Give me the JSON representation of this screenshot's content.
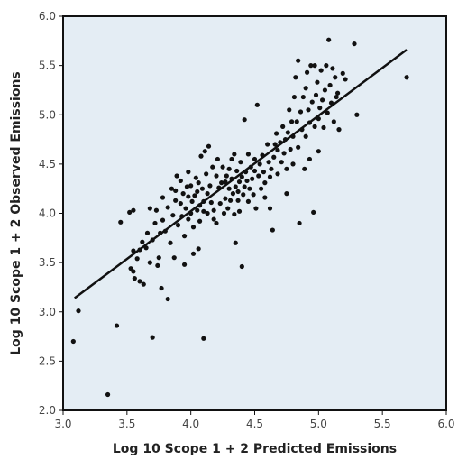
{
  "chart_data": {
    "type": "scatter",
    "title": "",
    "xlabel": "Log 10 Scope 1 + 2 Predicted Emissions",
    "ylabel": "Log 10 Scope 1 + 2 Observed Emissions",
    "xlim": [
      3.0,
      6.0
    ],
    "ylim": [
      2.0,
      6.0
    ],
    "x_ticks": [
      "3.0",
      "3.5",
      "4.0",
      "4.5",
      "5.0",
      "5.5",
      "6.0"
    ],
    "y_ticks": [
      "2.0",
      "2.5",
      "3.0",
      "3.5",
      "4.0",
      "4.5",
      "5.0",
      "5.5",
      "6.0"
    ],
    "grid": false,
    "colors": {
      "plot_background": "#e4edf4",
      "points": "#111111",
      "fit_line": "#111111",
      "frame": "#111111"
    },
    "fit_line": {
      "x": [
        3.09,
        5.69
      ],
      "y": [
        3.14,
        5.66
      ]
    },
    "points": [
      [
        3.08,
        2.7
      ],
      [
        3.12,
        3.01
      ],
      [
        3.35,
        2.16
      ],
      [
        3.42,
        2.86
      ],
      [
        3.7,
        2.74
      ],
      [
        4.1,
        2.73
      ],
      [
        3.45,
        3.91
      ],
      [
        3.52,
        4.01
      ],
      [
        3.55,
        4.03
      ],
      [
        3.53,
        3.44
      ],
      [
        3.55,
        3.41
      ],
      [
        3.55,
        3.62
      ],
      [
        3.56,
        3.34
      ],
      [
        3.58,
        3.54
      ],
      [
        3.6,
        3.63
      ],
      [
        3.6,
        3.31
      ],
      [
        3.62,
        3.71
      ],
      [
        3.63,
        3.28
      ],
      [
        3.65,
        3.65
      ],
      [
        3.66,
        3.8
      ],
      [
        3.68,
        3.5
      ],
      [
        3.68,
        4.05
      ],
      [
        3.7,
        3.73
      ],
      [
        3.72,
        3.9
      ],
      [
        3.73,
        4.03
      ],
      [
        3.74,
        3.47
      ],
      [
        3.75,
        3.55
      ],
      [
        3.76,
        3.8
      ],
      [
        3.77,
        3.24
      ],
      [
        3.78,
        4.16
      ],
      [
        3.78,
        3.93
      ],
      [
        3.8,
        3.82
      ],
      [
        3.82,
        4.06
      ],
      [
        3.82,
        3.13
      ],
      [
        3.84,
        3.7
      ],
      [
        3.85,
        4.25
      ],
      [
        3.86,
        3.98
      ],
      [
        3.87,
        3.55
      ],
      [
        3.88,
        4.13
      ],
      [
        3.88,
        4.23
      ],
      [
        3.89,
        4.38
      ],
      [
        3.9,
        3.88
      ],
      [
        3.92,
        4.1
      ],
      [
        3.92,
        4.33
      ],
      [
        3.93,
        3.97
      ],
      [
        3.94,
        4.2
      ],
      [
        3.95,
        3.77
      ],
      [
        3.95,
        3.48
      ],
      [
        3.96,
        4.05
      ],
      [
        3.97,
        4.27
      ],
      [
        3.98,
        3.94
      ],
      [
        3.98,
        4.17
      ],
      [
        3.98,
        4.42
      ],
      [
        4.0,
        4.0
      ],
      [
        4.0,
        4.28
      ],
      [
        4.01,
        4.12
      ],
      [
        4.02,
        3.86
      ],
      [
        4.02,
        3.59
      ],
      [
        4.03,
        4.18
      ],
      [
        4.04,
        4.36
      ],
      [
        4.05,
        4.03
      ],
      [
        4.05,
        4.22
      ],
      [
        4.06,
        4.31
      ],
      [
        4.06,
        3.64
      ],
      [
        4.07,
        4.08
      ],
      [
        4.07,
        3.92
      ],
      [
        4.08,
        4.58
      ],
      [
        4.09,
        4.25
      ],
      [
        4.1,
        4.12
      ],
      [
        4.1,
        4.02
      ],
      [
        4.11,
        4.63
      ],
      [
        4.12,
        4.4
      ],
      [
        4.13,
        4.2
      ],
      [
        4.13,
        4.0
      ],
      [
        4.14,
        4.68
      ],
      [
        4.15,
        4.28
      ],
      [
        4.16,
        4.11
      ],
      [
        4.17,
        4.47
      ],
      [
        4.18,
        3.94
      ],
      [
        4.18,
        4.03
      ],
      [
        4.2,
        4.38
      ],
      [
        4.2,
        3.9
      ],
      [
        4.21,
        4.55
      ],
      [
        4.22,
        4.26
      ],
      [
        4.23,
        4.1
      ],
      [
        4.24,
        4.31
      ],
      [
        4.25,
        4.47
      ],
      [
        4.26,
        4.0
      ],
      [
        4.27,
        4.32
      ],
      [
        4.27,
        4.15
      ],
      [
        4.28,
        4.38
      ],
      [
        4.29,
        4.05
      ],
      [
        4.3,
        4.45
      ],
      [
        4.3,
        4.25
      ],
      [
        4.31,
        4.13
      ],
      [
        4.32,
        4.55
      ],
      [
        4.32,
        4.35
      ],
      [
        4.33,
        4.2
      ],
      [
        4.34,
        3.99
      ],
      [
        4.34,
        4.6
      ],
      [
        4.35,
        4.27
      ],
      [
        4.35,
        3.7
      ],
      [
        4.36,
        4.43
      ],
      [
        4.37,
        4.13
      ],
      [
        4.37,
        4.22
      ],
      [
        4.38,
        4.32
      ],
      [
        4.38,
        4.02
      ],
      [
        4.39,
        4.52
      ],
      [
        4.4,
        4.37
      ],
      [
        4.4,
        3.46
      ],
      [
        4.41,
        4.19
      ],
      [
        4.42,
        4.95
      ],
      [
        4.42,
        4.27
      ],
      [
        4.43,
        4.42
      ],
      [
        4.44,
        4.33
      ],
      [
        4.45,
        4.12
      ],
      [
        4.45,
        4.6
      ],
      [
        4.46,
        4.25
      ],
      [
        4.47,
        4.47
      ],
      [
        4.48,
        4.35
      ],
      [
        4.49,
        4.19
      ],
      [
        4.5,
        4.43
      ],
      [
        4.5,
        4.55
      ],
      [
        4.51,
        4.05
      ],
      [
        4.52,
        5.1
      ],
      [
        4.53,
        4.38
      ],
      [
        4.54,
        4.5
      ],
      [
        4.55,
        4.25
      ],
      [
        4.56,
        4.59
      ],
      [
        4.57,
        4.42
      ],
      [
        4.58,
        4.16
      ],
      [
        4.58,
        4.31
      ],
      [
        4.6,
        4.7
      ],
      [
        4.61,
        4.52
      ],
      [
        4.62,
        4.37
      ],
      [
        4.62,
        4.05
      ],
      [
        4.63,
        4.45
      ],
      [
        4.64,
        3.83
      ],
      [
        4.65,
        4.57
      ],
      [
        4.66,
        4.7
      ],
      [
        4.67,
        4.81
      ],
      [
        4.68,
        4.64
      ],
      [
        4.68,
        4.4
      ],
      [
        4.7,
        4.72
      ],
      [
        4.71,
        4.52
      ],
      [
        4.72,
        4.88
      ],
      [
        4.73,
        4.61
      ],
      [
        4.74,
        4.75
      ],
      [
        4.75,
        4.45
      ],
      [
        4.75,
        4.2
      ],
      [
        4.76,
        4.82
      ],
      [
        4.77,
        5.05
      ],
      [
        4.78,
        4.65
      ],
      [
        4.79,
        4.93
      ],
      [
        4.8,
        4.78
      ],
      [
        4.8,
        4.5
      ],
      [
        4.81,
        5.18
      ],
      [
        4.82,
        5.38
      ],
      [
        4.83,
        4.93
      ],
      [
        4.84,
        5.55
      ],
      [
        4.84,
        4.67
      ],
      [
        4.85,
        3.9
      ],
      [
        4.86,
        5.03
      ],
      [
        4.87,
        4.85
      ],
      [
        4.88,
        5.18
      ],
      [
        4.89,
        4.45
      ],
      [
        4.9,
        5.27
      ],
      [
        4.9,
        4.78
      ],
      [
        4.91,
        5.43
      ],
      [
        4.92,
        5.05
      ],
      [
        4.93,
        4.92
      ],
      [
        4.93,
        4.55
      ],
      [
        4.94,
        5.5
      ],
      [
        4.95,
        5.13
      ],
      [
        4.96,
        4.01
      ],
      [
        4.97,
        5.5
      ],
      [
        4.97,
        4.88
      ],
      [
        4.98,
        5.2
      ],
      [
        4.99,
        5.33
      ],
      [
        5.0,
        4.96
      ],
      [
        5.0,
        4.63
      ],
      [
        5.01,
        5.07
      ],
      [
        5.02,
        5.45
      ],
      [
        5.03,
        5.15
      ],
      [
        5.04,
        4.87
      ],
      [
        5.05,
        5.25
      ],
      [
        5.06,
        5.5
      ],
      [
        5.07,
        5.02
      ],
      [
        5.08,
        5.76
      ],
      [
        5.09,
        5.3
      ],
      [
        5.1,
        5.12
      ],
      [
        5.11,
        5.47
      ],
      [
        5.12,
        4.93
      ],
      [
        5.13,
        5.38
      ],
      [
        5.14,
        5.18
      ],
      [
        5.15,
        5.22
      ],
      [
        5.16,
        4.85
      ],
      [
        5.19,
        5.42
      ],
      [
        5.21,
        5.36
      ],
      [
        5.28,
        5.72
      ],
      [
        5.3,
        5.0
      ],
      [
        5.69,
        5.38
      ]
    ]
  }
}
